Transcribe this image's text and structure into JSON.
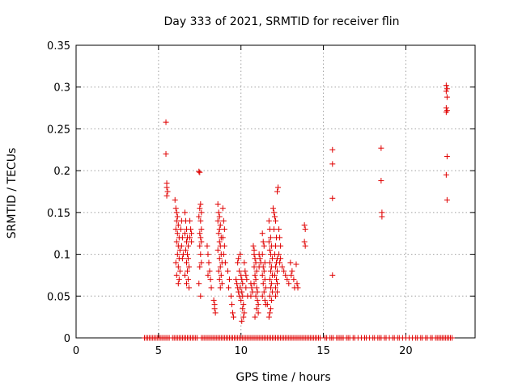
{
  "chart_data": {
    "type": "scatter",
    "title": "Day 333 of 2021, SRMTID for receiver flin",
    "xlabel": "GPS time / hours",
    "ylabel": "SRMTID / TECUs",
    "xlim": [
      0,
      24.2
    ],
    "ylim": [
      0,
      0.35
    ],
    "xticks": [
      0,
      5,
      10,
      15,
      20
    ],
    "yticks": [
      0,
      0.05,
      0.1,
      0.15,
      0.2,
      0.25,
      0.3,
      0.35
    ],
    "grid": true,
    "marker_color": "#e00000",
    "series": [
      {
        "points": [
          [
            5.45,
            0.258
          ],
          [
            5.45,
            0.22
          ],
          [
            5.5,
            0.185
          ],
          [
            5.5,
            0.18
          ],
          [
            5.55,
            0.175
          ],
          [
            5.5,
            0.17
          ],
          [
            6.0,
            0.165
          ],
          [
            6.05,
            0.155
          ],
          [
            6.1,
            0.15
          ],
          [
            6.15,
            0.145
          ],
          [
            6.1,
            0.14
          ],
          [
            6.2,
            0.135
          ],
          [
            6.05,
            0.13
          ],
          [
            6.15,
            0.125
          ],
          [
            6.25,
            0.12
          ],
          [
            6.1,
            0.115
          ],
          [
            6.2,
            0.11
          ],
          [
            6.3,
            0.105
          ],
          [
            6.15,
            0.1
          ],
          [
            6.25,
            0.095
          ],
          [
            6.05,
            0.09
          ],
          [
            6.2,
            0.085
          ],
          [
            6.3,
            0.08
          ],
          [
            6.1,
            0.075
          ],
          [
            6.25,
            0.07
          ],
          [
            6.2,
            0.065
          ],
          [
            6.4,
            0.14
          ],
          [
            6.35,
            0.13
          ],
          [
            6.45,
            0.12
          ],
          [
            6.4,
            0.11
          ],
          [
            6.5,
            0.1
          ],
          [
            6.45,
            0.095
          ],
          [
            6.6,
            0.15
          ],
          [
            6.65,
            0.14
          ],
          [
            6.7,
            0.13
          ],
          [
            6.6,
            0.125
          ],
          [
            6.75,
            0.12
          ],
          [
            6.7,
            0.115
          ],
          [
            6.8,
            0.11
          ],
          [
            6.65,
            0.105
          ],
          [
            6.75,
            0.1
          ],
          [
            6.8,
            0.095
          ],
          [
            6.7,
            0.09
          ],
          [
            6.85,
            0.085
          ],
          [
            6.75,
            0.08
          ],
          [
            6.6,
            0.075
          ],
          [
            6.8,
            0.07
          ],
          [
            6.7,
            0.065
          ],
          [
            6.85,
            0.06
          ],
          [
            6.9,
            0.14
          ],
          [
            6.95,
            0.13
          ],
          [
            7.0,
            0.125
          ],
          [
            6.9,
            0.12
          ],
          [
            7.0,
            0.115
          ],
          [
            7.45,
            0.199
          ],
          [
            7.5,
            0.198
          ],
          [
            7.55,
            0.16
          ],
          [
            7.5,
            0.155
          ],
          [
            7.6,
            0.15
          ],
          [
            7.45,
            0.145
          ],
          [
            7.55,
            0.14
          ],
          [
            7.6,
            0.13
          ],
          [
            7.5,
            0.125
          ],
          [
            7.55,
            0.12
          ],
          [
            7.6,
            0.115
          ],
          [
            7.5,
            0.11
          ],
          [
            7.55,
            0.1
          ],
          [
            7.6,
            0.09
          ],
          [
            7.5,
            0.085
          ],
          [
            7.45,
            0.065
          ],
          [
            7.55,
            0.05
          ],
          [
            7.95,
            0.11
          ],
          [
            8.0,
            0.1
          ],
          [
            8.05,
            0.09
          ],
          [
            8.1,
            0.08
          ],
          [
            8.0,
            0.075
          ],
          [
            8.15,
            0.07
          ],
          [
            8.2,
            0.06
          ],
          [
            8.35,
            0.045
          ],
          [
            8.4,
            0.04
          ],
          [
            8.4,
            0.035
          ],
          [
            8.45,
            0.03
          ],
          [
            8.6,
            0.16
          ],
          [
            8.65,
            0.15
          ],
          [
            8.7,
            0.145
          ],
          [
            8.6,
            0.14
          ],
          [
            8.75,
            0.135
          ],
          [
            8.7,
            0.13
          ],
          [
            8.65,
            0.125
          ],
          [
            8.8,
            0.12
          ],
          [
            8.7,
            0.115
          ],
          [
            8.75,
            0.11
          ],
          [
            8.6,
            0.105
          ],
          [
            8.8,
            0.1
          ],
          [
            8.7,
            0.095
          ],
          [
            8.85,
            0.09
          ],
          [
            8.75,
            0.085
          ],
          [
            8.65,
            0.08
          ],
          [
            8.8,
            0.075
          ],
          [
            8.7,
            0.07
          ],
          [
            8.85,
            0.065
          ],
          [
            8.75,
            0.06
          ],
          [
            8.9,
            0.155
          ],
          [
            8.95,
            0.14
          ],
          [
            9.0,
            0.13
          ],
          [
            8.9,
            0.12
          ],
          [
            9.0,
            0.11
          ],
          [
            8.95,
            0.1
          ],
          [
            9.05,
            0.09
          ],
          [
            9.2,
            0.08
          ],
          [
            9.3,
            0.07
          ],
          [
            9.25,
            0.06
          ],
          [
            9.4,
            0.05
          ],
          [
            9.45,
            0.04
          ],
          [
            9.5,
            0.03
          ],
          [
            9.55,
            0.025
          ],
          [
            9.7,
            0.07
          ],
          [
            9.75,
            0.065
          ],
          [
            9.8,
            0.06
          ],
          [
            9.85,
            0.055
          ],
          [
            9.9,
            0.05
          ],
          [
            9.95,
            0.1
          ],
          [
            9.85,
            0.095
          ],
          [
            9.8,
            0.09
          ],
          [
            9.9,
            0.08
          ],
          [
            10.0,
            0.075
          ],
          [
            10.05,
            0.07
          ],
          [
            10.1,
            0.065
          ],
          [
            9.95,
            0.06
          ],
          [
            10.05,
            0.055
          ],
          [
            10.1,
            0.05
          ],
          [
            10.0,
            0.045
          ],
          [
            10.15,
            0.04
          ],
          [
            10.1,
            0.035
          ],
          [
            10.2,
            0.03
          ],
          [
            10.15,
            0.025
          ],
          [
            10.05,
            0.02
          ],
          [
            10.2,
            0.09
          ],
          [
            10.25,
            0.08
          ],
          [
            10.3,
            0.075
          ],
          [
            10.35,
            0.07
          ],
          [
            10.3,
            0.06
          ],
          [
            10.4,
            0.05
          ],
          [
            10.6,
            0.065
          ],
          [
            10.65,
            0.06
          ],
          [
            10.7,
            0.055
          ],
          [
            10.6,
            0.05
          ],
          [
            10.75,
            0.11
          ],
          [
            10.8,
            0.1
          ],
          [
            10.85,
            0.095
          ],
          [
            10.9,
            0.09
          ],
          [
            10.8,
            0.085
          ],
          [
            10.95,
            0.08
          ],
          [
            10.85,
            0.075
          ],
          [
            10.9,
            0.07
          ],
          [
            10.8,
            0.065
          ],
          [
            10.95,
            0.06
          ],
          [
            11.0,
            0.055
          ],
          [
            10.9,
            0.05
          ],
          [
            11.0,
            0.045
          ],
          [
            11.05,
            0.04
          ],
          [
            10.95,
            0.035
          ],
          [
            11.05,
            0.03
          ],
          [
            10.85,
            0.025
          ],
          [
            10.8,
            0.105
          ],
          [
            11.1,
            0.1
          ],
          [
            11.15,
            0.095
          ],
          [
            11.2,
            0.09
          ],
          [
            11.1,
            0.085
          ],
          [
            11.3,
            0.125
          ],
          [
            11.35,
            0.115
          ],
          [
            11.4,
            0.11
          ],
          [
            11.3,
            0.1
          ],
          [
            11.45,
            0.09
          ],
          [
            11.35,
            0.085
          ],
          [
            11.4,
            0.08
          ],
          [
            11.3,
            0.075
          ],
          [
            11.45,
            0.07
          ],
          [
            11.35,
            0.065
          ],
          [
            11.5,
            0.06
          ],
          [
            11.4,
            0.055
          ],
          [
            11.3,
            0.05
          ],
          [
            11.45,
            0.045
          ],
          [
            11.5,
            0.04
          ],
          [
            11.6,
            0.04
          ],
          [
            11.7,
            0.14
          ],
          [
            11.75,
            0.13
          ],
          [
            11.8,
            0.12
          ],
          [
            11.7,
            0.115
          ],
          [
            11.85,
            0.11
          ],
          [
            11.75,
            0.105
          ],
          [
            11.8,
            0.1
          ],
          [
            11.9,
            0.095
          ],
          [
            11.75,
            0.09
          ],
          [
            11.85,
            0.085
          ],
          [
            11.8,
            0.08
          ],
          [
            11.9,
            0.075
          ],
          [
            11.75,
            0.07
          ],
          [
            11.85,
            0.065
          ],
          [
            11.8,
            0.06
          ],
          [
            11.9,
            0.055
          ],
          [
            11.75,
            0.05
          ],
          [
            11.85,
            0.045
          ],
          [
            11.8,
            0.035
          ],
          [
            11.75,
            0.03
          ],
          [
            11.7,
            0.025
          ],
          [
            11.95,
            0.155
          ],
          [
            12.0,
            0.15
          ],
          [
            12.05,
            0.145
          ],
          [
            12.1,
            0.14
          ],
          [
            12.0,
            0.13
          ],
          [
            12.15,
            0.12
          ],
          [
            12.1,
            0.11
          ],
          [
            12.05,
            0.1
          ],
          [
            12.2,
            0.095
          ],
          [
            12.15,
            0.09
          ],
          [
            12.1,
            0.085
          ],
          [
            12.2,
            0.08
          ],
          [
            12.05,
            0.075
          ],
          [
            12.15,
            0.07
          ],
          [
            12.2,
            0.065
          ],
          [
            12.1,
            0.06
          ],
          [
            12.2,
            0.055
          ],
          [
            12.1,
            0.05
          ],
          [
            12.2,
            0.175
          ],
          [
            12.25,
            0.18
          ],
          [
            12.3,
            0.13
          ],
          [
            12.35,
            0.12
          ],
          [
            12.4,
            0.11
          ],
          [
            12.3,
            0.1
          ],
          [
            12.4,
            0.095
          ],
          [
            12.35,
            0.09
          ],
          [
            12.5,
            0.085
          ],
          [
            12.6,
            0.08
          ],
          [
            12.7,
            0.075
          ],
          [
            12.8,
            0.07
          ],
          [
            12.9,
            0.065
          ],
          [
            13.0,
            0.09
          ],
          [
            13.1,
            0.08
          ],
          [
            13.05,
            0.075
          ],
          [
            13.2,
            0.07
          ],
          [
            13.25,
            0.06
          ],
          [
            13.4,
            0.065
          ],
          [
            13.35,
            0.088
          ],
          [
            13.45,
            0.06
          ],
          [
            13.85,
            0.135
          ],
          [
            13.9,
            0.13
          ],
          [
            13.85,
            0.115
          ],
          [
            13.9,
            0.11
          ],
          [
            15.55,
            0.225
          ],
          [
            15.55,
            0.208
          ],
          [
            15.55,
            0.167
          ],
          [
            15.55,
            0.075
          ],
          [
            18.5,
            0.227
          ],
          [
            18.5,
            0.188
          ],
          [
            18.55,
            0.15
          ],
          [
            18.55,
            0.145
          ],
          [
            22.45,
            0.302
          ],
          [
            22.5,
            0.298
          ],
          [
            22.45,
            0.295
          ],
          [
            22.5,
            0.288
          ],
          [
            22.45,
            0.275
          ],
          [
            22.5,
            0.272
          ],
          [
            22.45,
            0.27
          ],
          [
            22.5,
            0.217
          ],
          [
            22.45,
            0.195
          ],
          [
            22.5,
            0.165
          ]
        ],
        "zero_points_x": [
          4.15,
          4.25,
          4.35,
          4.45,
          4.55,
          4.65,
          4.75,
          4.85,
          4.95,
          5.05,
          5.15,
          5.25,
          5.35,
          5.45,
          5.55,
          5.65,
          5.85,
          5.95,
          6.05,
          6.15,
          6.25,
          6.35,
          6.45,
          6.55,
          6.65,
          6.75,
          6.85,
          6.95,
          7.05,
          7.15,
          7.25,
          7.35,
          7.6,
          7.7,
          7.8,
          7.9,
          8.0,
          8.1,
          8.2,
          8.3,
          8.4,
          8.5,
          8.6,
          8.7,
          8.8,
          8.9,
          9.0,
          9.1,
          9.2,
          9.3,
          9.4,
          9.5,
          9.6,
          9.7,
          9.8,
          9.9,
          10.0,
          10.1,
          10.2,
          10.3,
          10.4,
          10.5,
          10.6,
          10.7,
          10.8,
          10.9,
          11.0,
          11.1,
          11.2,
          11.3,
          11.4,
          11.5,
          11.6,
          11.7,
          11.8,
          11.9,
          12.0,
          12.1,
          12.2,
          12.3,
          12.4,
          12.5,
          12.6,
          12.7,
          12.8,
          12.9,
          13.0,
          13.1,
          13.2,
          13.3,
          13.4,
          13.5,
          13.6,
          13.7,
          13.8,
          13.9,
          14.0,
          14.1,
          14.2,
          14.3,
          14.4,
          14.5,
          14.6,
          14.7,
          14.8,
          15.1,
          15.2,
          15.4,
          15.5,
          15.6,
          15.8,
          15.9,
          16.0,
          16.1,
          16.2,
          16.4,
          16.5,
          16.6,
          16.8,
          16.9,
          17.1,
          17.3,
          17.5,
          17.6,
          17.8,
          18.0,
          18.1,
          18.3,
          18.4,
          18.5,
          18.7,
          18.8,
          19.0,
          19.2,
          19.3,
          19.5,
          19.6,
          19.8,
          20.0,
          20.2,
          20.4,
          20.6,
          20.7,
          20.9,
          21.0,
          21.2,
          21.3,
          21.5,
          21.6,
          21.8,
          21.9,
          22.0,
          22.1,
          22.2,
          22.3,
          22.4,
          22.5,
          22.6,
          22.7,
          22.8
        ]
      }
    ]
  }
}
